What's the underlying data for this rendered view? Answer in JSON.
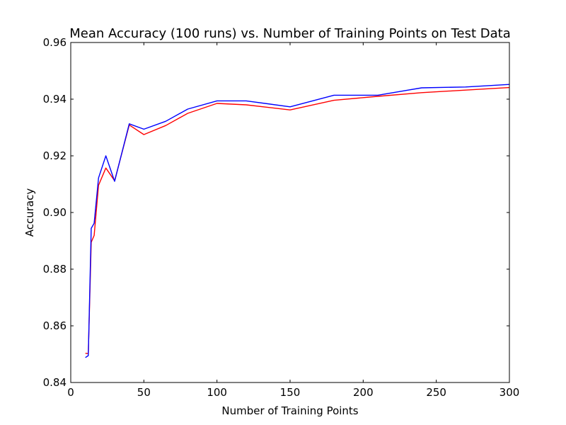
{
  "chart_data": {
    "type": "line",
    "title": "Mean Accuracy (100 runs) vs. Number of Training Points on Test Data",
    "xlabel": "Number of Training Points",
    "ylabel": "Accuracy",
    "xlim": [
      0,
      300
    ],
    "ylim": [
      0.84,
      0.96
    ],
    "x_ticks": [
      "0",
      "50",
      "100",
      "150",
      "200",
      "250",
      "300"
    ],
    "y_ticks": [
      "0.84",
      "0.86",
      "0.88",
      "0.90",
      "0.92",
      "0.94",
      "0.96"
    ],
    "grid": false,
    "series": [
      {
        "color": "#ff0000",
        "x": [
          10,
          12,
          14,
          16,
          19,
          24,
          30,
          40,
          50,
          65,
          80,
          100,
          120,
          150,
          180,
          210,
          240,
          270,
          300
        ],
        "y": [
          0.8503,
          0.8502,
          0.8895,
          0.8919,
          0.9096,
          0.9157,
          0.9112,
          0.9309,
          0.9275,
          0.9307,
          0.935,
          0.9385,
          0.938,
          0.9362,
          0.9396,
          0.941,
          0.9423,
          0.9432,
          0.9441
        ]
      },
      {
        "color": "#0000ff",
        "x": [
          10,
          12,
          14,
          16,
          19,
          24,
          30,
          40,
          50,
          65,
          80,
          100,
          120,
          150,
          180,
          210,
          240,
          270,
          300
        ],
        "y": [
          0.8488,
          0.8495,
          0.8944,
          0.8962,
          0.9122,
          0.92,
          0.911,
          0.9313,
          0.9294,
          0.9322,
          0.9365,
          0.9394,
          0.9394,
          0.9373,
          0.9414,
          0.9414,
          0.944,
          0.9443,
          0.9452
        ]
      }
    ]
  }
}
